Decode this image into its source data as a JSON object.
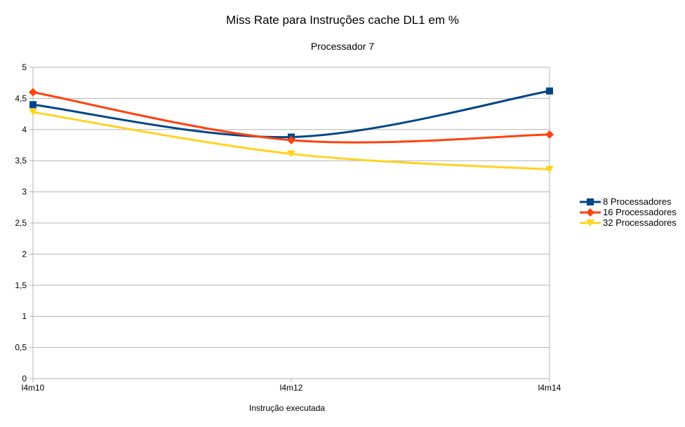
{
  "chart_data": {
    "type": "line",
    "title": "Miss Rate para Instruções cache DL1 em %",
    "subtitle": "Processador 7",
    "xlabel": "Instrução executada",
    "ylabel": "",
    "categories": [
      "l4m10",
      "l4m12",
      "l4m14"
    ],
    "ylim": [
      0,
      5
    ],
    "yticks": [
      "0",
      "0,5",
      "1",
      "1,5",
      "2",
      "2,5",
      "3",
      "3,5",
      "4",
      "4,5",
      "5"
    ],
    "grid": true,
    "legend_position": "right",
    "series": [
      {
        "name": "8 Processadores",
        "values": [
          4.4,
          3.88,
          4.62
        ],
        "color": "#004586",
        "marker": "square"
      },
      {
        "name": "16 Processadores",
        "values": [
          4.6,
          3.83,
          3.92
        ],
        "color": "#ff420e",
        "marker": "diamond"
      },
      {
        "name": "32 Processadores",
        "values": [
          4.28,
          3.61,
          3.36
        ],
        "color": "#ffd320",
        "marker": "triangle-down"
      }
    ]
  }
}
